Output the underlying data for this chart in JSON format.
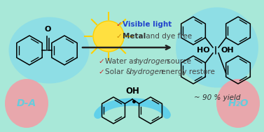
{
  "bg_color": "#a8e8d8",
  "sun_color": "#FFE040",
  "sun_ray_color": "#FFD700",
  "arrow_color": "#222222",
  "yield_text": "~ 90 % yield",
  "da_text": "D-A",
  "h2o_text": "H₂O",
  "da_circle_color": "#f0a0a8",
  "h2o_circle_color": "#f0a0a8",
  "blue_oval_color": "#7dd8ef",
  "smile_color": "#55ccee",
  "check_red": "#cc2222",
  "check_gold": "#cc8800",
  "text_blue": "#2244cc",
  "text_gray": "#444444",
  "text_bold_gray": "#333333"
}
